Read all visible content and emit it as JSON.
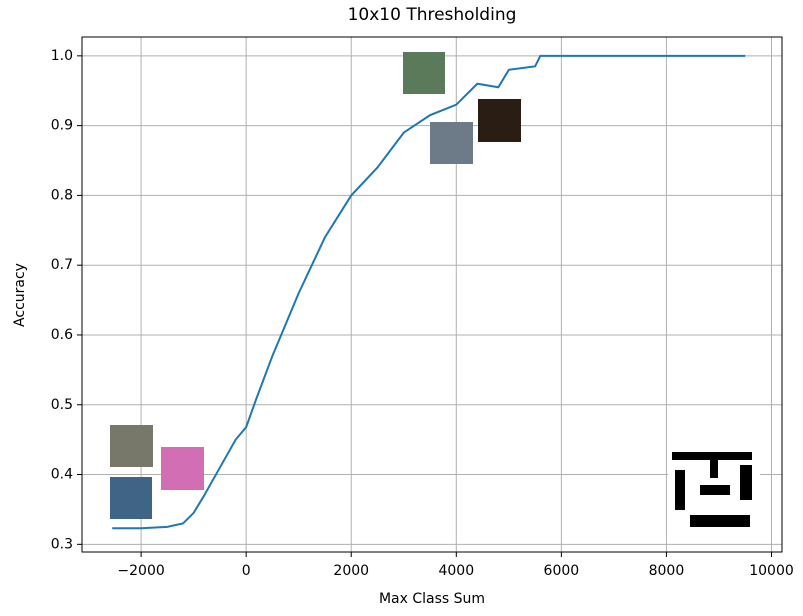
{
  "chart_data": {
    "type": "line",
    "title": "10x10 Thresholding",
    "x_label": "Max Class Sum",
    "y_label": "Accuracy",
    "x": [
      -2550,
      -2000,
      -1500,
      -1200,
      -1000,
      -800,
      -500,
      -200,
      0,
      200,
      500,
      1000,
      1500,
      2000,
      2500,
      3000,
      3500,
      4000,
      4400,
      4800,
      5000,
      5500,
      5600,
      9500
    ],
    "series": [
      {
        "name": "Accuracy",
        "color": "#1f77b4",
        "values": [
          0.323,
          0.323,
          0.325,
          0.33,
          0.345,
          0.37,
          0.41,
          0.45,
          0.468,
          0.51,
          0.57,
          0.66,
          0.74,
          0.8,
          0.84,
          0.89,
          0.915,
          0.93,
          0.96,
          0.955,
          0.98,
          0.985,
          1.0,
          1.0
        ]
      }
    ],
    "xlim": [
      -3125,
      10200
    ],
    "xticks": [
      {
        "value": -2000,
        "label": "−2000"
      },
      0,
      2000,
      4000,
      6000,
      8000,
      10000
    ],
    "ylim": [
      0.289,
      1.027
    ],
    "yticks": [
      0.3,
      0.4,
      0.5,
      0.6,
      0.7,
      0.8,
      0.9,
      {
        "value": 1.0,
        "label": "1.0"
      }
    ],
    "grid": true
  }
}
